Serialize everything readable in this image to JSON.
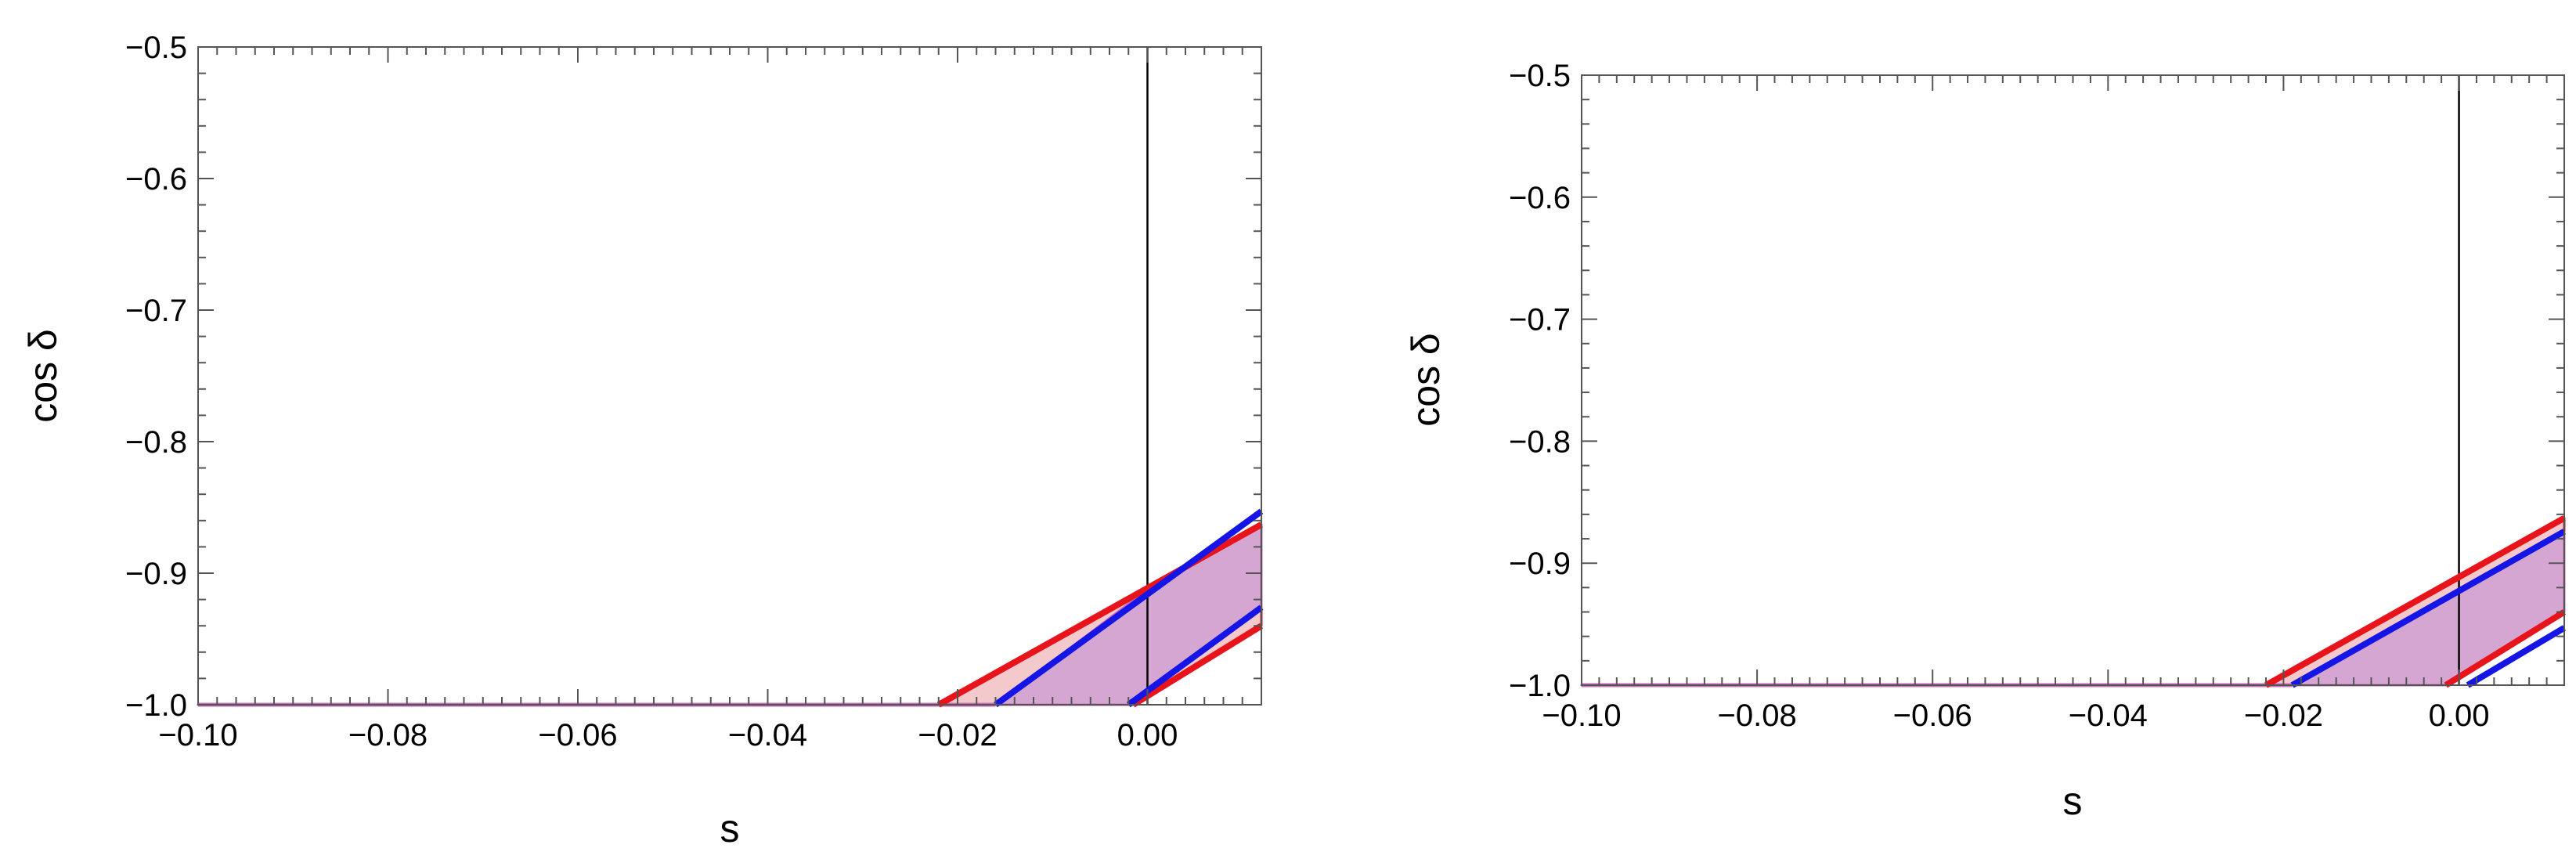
{
  "chart_data": [
    {
      "type": "area",
      "xlabel": "s",
      "ylabel": "cos δ",
      "xlim": [
        -0.1,
        0.012
      ],
      "ylim": [
        -1.0,
        -0.5
      ],
      "xticks": [
        -0.1,
        -0.08,
        -0.06,
        -0.04,
        -0.02,
        0.0
      ],
      "xtick_labels": [
        "−0.10",
        "−0.08",
        "−0.06",
        "−0.04",
        "−0.02",
        "0.00"
      ],
      "yticks": [
        -0.5,
        -0.6,
        -0.7,
        -0.8,
        -0.9,
        -1.0
      ],
      "ytick_labels": [
        "−0.5",
        "−0.6",
        "−0.7",
        "−0.8",
        "−0.9",
        "−1.0"
      ],
      "vertical_reference_line": {
        "x": 0.0,
        "color": "#000000"
      },
      "series": [
        {
          "color": "#e8141b",
          "points": [
            [
              -0.022,
              -1.0
            ],
            [
              0.012,
              -0.863
            ]
          ]
        },
        {
          "color": "#e8141b",
          "points": [
            [
              -0.0015,
              -1.0
            ],
            [
              0.012,
              -0.94
            ]
          ]
        },
        {
          "color": "#1515e6",
          "points": [
            [
              -0.016,
              -1.0
            ],
            [
              0.012,
              -0.853
            ]
          ]
        },
        {
          "color": "#1515e6",
          "points": [
            [
              -0.002,
              -1.0
            ],
            [
              0.012,
              -0.926
            ]
          ]
        }
      ],
      "regions": [
        {
          "fill": "#f4c9cc",
          "stroke": "#e8141b",
          "points": [
            [
              -0.1,
              -1.0
            ],
            [
              -0.022,
              -1.0
            ],
            [
              0.012,
              -0.863
            ],
            [
              0.012,
              -0.94
            ],
            [
              -0.0015,
              -1.0
            ]
          ]
        },
        {
          "fill": "#d6a6d2",
          "stroke": "#c86cb8",
          "points": [
            [
              -0.1,
              -1.0
            ],
            [
              -0.016,
              -1.0
            ],
            [
              -0.0016,
              -0.921
            ],
            [
              0.012,
              -0.863
            ],
            [
              0.012,
              -0.926
            ],
            [
              -0.002,
              -1.0
            ]
          ]
        }
      ],
      "baseline": {
        "y": -1.0,
        "x_range": [
          -0.1,
          -0.016
        ],
        "color": "#c86cb8"
      }
    },
    {
      "type": "area",
      "xlabel": "s",
      "ylabel": "cos δ",
      "xlim": [
        -0.1,
        0.012
      ],
      "ylim": [
        -1.0,
        -0.5
      ],
      "xticks": [
        -0.1,
        -0.08,
        -0.06,
        -0.04,
        -0.02,
        0.0
      ],
      "xtick_labels": [
        "−0.10",
        "−0.08",
        "−0.06",
        "−0.04",
        "−0.02",
        "0.00"
      ],
      "yticks": [
        -0.5,
        -0.6,
        -0.7,
        -0.8,
        -0.9,
        -1.0
      ],
      "ytick_labels": [
        "−0.5",
        "−0.6",
        "−0.7",
        "−0.8",
        "−0.9",
        "−1.0"
      ],
      "vertical_reference_line": {
        "x": 0.0,
        "color": "#000000"
      },
      "series": [
        {
          "color": "#e8141b",
          "points": [
            [
              -0.022,
              -1.0
            ],
            [
              0.012,
              -0.863
            ]
          ]
        },
        {
          "color": "#e8141b",
          "points": [
            [
              -0.0015,
              -1.0
            ],
            [
              0.012,
              -0.94
            ]
          ]
        },
        {
          "color": "#1515e6",
          "points": [
            [
              -0.019,
              -1.0
            ],
            [
              0.012,
              -0.874
            ]
          ]
        },
        {
          "color": "#1515e6",
          "points": [
            [
              0.001,
              -1.0
            ],
            [
              0.012,
              -0.953
            ]
          ]
        }
      ],
      "regions": [
        {
          "fill": "#f4c9cc",
          "stroke": "#e8141b",
          "points": [
            [
              -0.1,
              -1.0
            ],
            [
              -0.022,
              -1.0
            ],
            [
              0.012,
              -0.863
            ],
            [
              0.012,
              -0.94
            ],
            [
              -0.0015,
              -1.0
            ]
          ]
        },
        {
          "fill": "#d6a6d2",
          "stroke": "#c86cb8",
          "points": [
            [
              -0.1,
              -1.0
            ],
            [
              -0.019,
              -1.0
            ],
            [
              0.012,
              -0.874
            ],
            [
              0.012,
              -0.94
            ],
            [
              -0.0015,
              -1.0
            ]
          ]
        }
      ],
      "baseline": {
        "y": -1.0,
        "x_range": [
          -0.1,
          -0.019
        ],
        "color": "#c86cb8"
      }
    }
  ]
}
